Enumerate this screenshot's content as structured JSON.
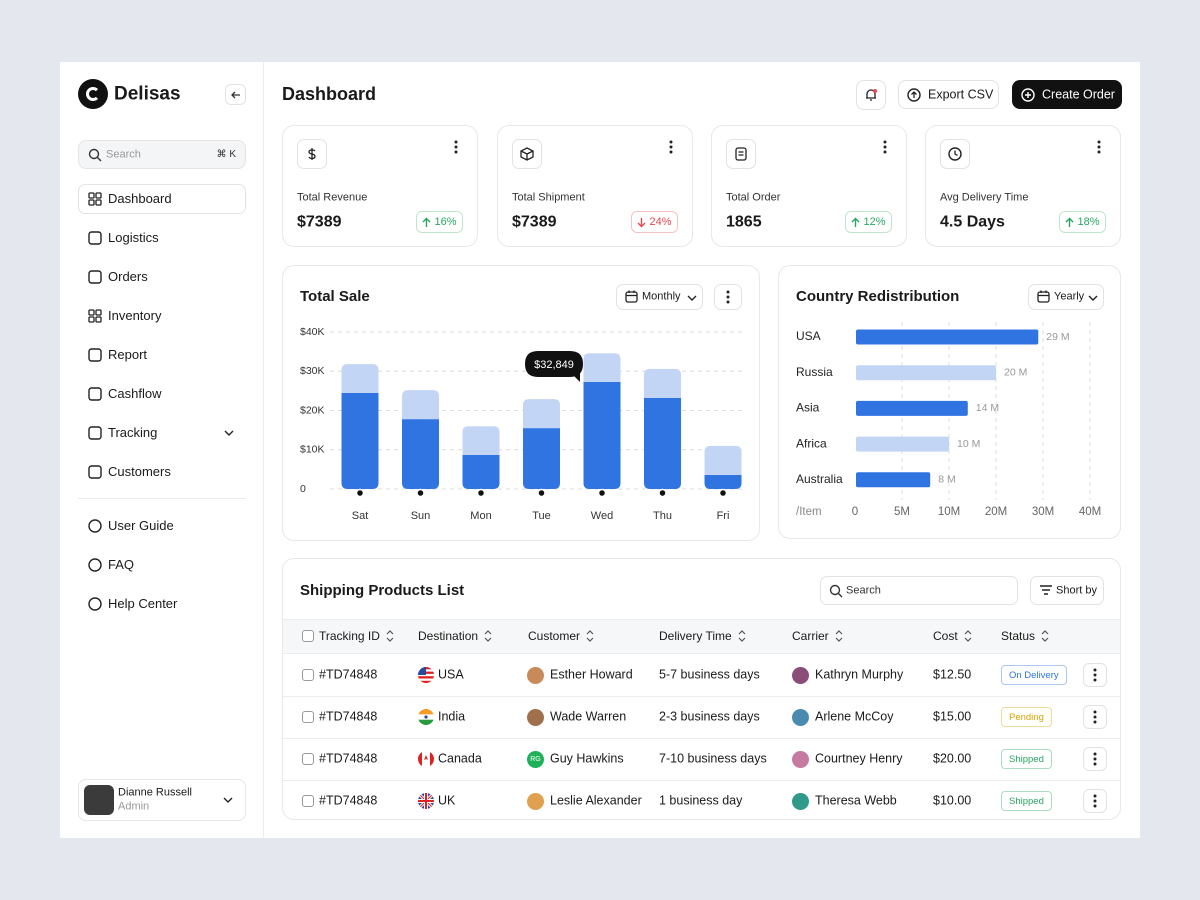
{
  "sidebar": {
    "brand": "Delisas",
    "search": "Search",
    "shortcut": "⌘ K",
    "nav": [
      "Dashboard",
      "Logistics",
      "Orders",
      "Inventory",
      "Report",
      "Cashflow",
      "Tracking",
      "Customers"
    ],
    "support": [
      "User Guide",
      "FAQ",
      "Help Center"
    ],
    "user": {
      "name": "Dianne Russell",
      "role": "Admin"
    }
  },
  "header": {
    "title": "Dashboard",
    "export": "Export CSV",
    "create": "Create Order"
  },
  "stats": [
    {
      "label": "Total Revenue",
      "value": "$7389",
      "change": "16%",
      "trend": "up"
    },
    {
      "label": "Total Shipment",
      "value": "$7389",
      "change": "24%",
      "trend": "down"
    },
    {
      "label": "Total Order",
      "value": "1865",
      "change": "12%",
      "trend": "up"
    },
    {
      "label": "Avg Delivery Time",
      "value": "4.5 Days",
      "change": "18%",
      "trend": "up"
    }
  ],
  "chart_data": [
    {
      "type": "bar",
      "title": "Total Sale",
      "period": "Monthly",
      "tooltip": "$32,849",
      "stacked": true,
      "categories": [
        "Sat",
        "Sun",
        "Mon",
        "Tue",
        "Wed",
        "Thu",
        "Fri"
      ],
      "series": [
        {
          "color": "#2f74e0",
          "values": [
            24500,
            17800,
            8700,
            15500,
            27300,
            23200,
            3600
          ]
        },
        {
          "color": "#c3d5f5",
          "values": [
            7300,
            7400,
            7300,
            7400,
            7300,
            7400,
            7400
          ]
        }
      ],
      "ylim": [
        0,
        40000
      ],
      "yticks": [
        0,
        {
          "value": 10000,
          "label": "$10K"
        },
        {
          "value": 20000,
          "label": "$20K"
        },
        {
          "value": 30000,
          "label": "$30K"
        },
        {
          "value": 40000,
          "label": "$40K"
        }
      ],
      "grid": true
    },
    {
      "type": "barh",
      "title": "Country Redistribution",
      "period": "Yearly",
      "x_label": "/Item",
      "categories": [
        "USA",
        "Russia",
        "Asia",
        "Africa",
        "Australia"
      ],
      "values": [
        29,
        20,
        14,
        10,
        8
      ],
      "value_labels": [
        "29 M",
        "20 M",
        "14 M",
        "10 M",
        "8 M"
      ],
      "colors": [
        "#2f74e0",
        "#c3d5f5",
        "#2f74e0",
        "#c3d5f5",
        "#2f74e0"
      ],
      "xlim": [
        0,
        40
      ],
      "xticks": [
        0,
        {
          "value": 5,
          "label": "5M"
        },
        {
          "value": 10,
          "label": "10M"
        },
        {
          "value": 20,
          "label": "20M"
        },
        {
          "value": 30,
          "label": "30M"
        },
        {
          "value": 40,
          "label": "40M"
        }
      ],
      "grid": true
    }
  ],
  "table": {
    "title": "Shipping Products List",
    "search": "Search",
    "sort": "Short by",
    "columns": [
      "Tracking ID",
      "Destination",
      "Customer",
      "Delivery Time",
      "Carrier",
      "Cost",
      "Status"
    ],
    "rows": [
      {
        "id": "#TD74848",
        "destination": "USA",
        "customer": "Esther Howard",
        "delivery": "5-7 business days",
        "carrier": "Kathryn Murphy",
        "cost": "$12.50",
        "status": "On Delivery",
        "status_color": "#2f74e0"
      },
      {
        "id": "#TD74848",
        "destination": "India",
        "customer": "Wade Warren",
        "delivery": "2-3 business days",
        "carrier": "Arlene McCoy",
        "cost": "$15.00",
        "status": "Pending",
        "status_color": "#d9a400"
      },
      {
        "id": "#TD74848",
        "destination": "Canada",
        "customer": "Guy Hawkins",
        "customer_initials": "RG",
        "delivery": "7-10 business days",
        "carrier": "Courtney Henry",
        "cost": "$20.00",
        "status": "Shipped",
        "status_color": "#27a861"
      },
      {
        "id": "#TD74848",
        "destination": "UK",
        "customer": "Leslie Alexander",
        "delivery": "1 business day",
        "carrier": "Theresa Webb",
        "cost": "$10.00",
        "status": "Shipped",
        "status_color": "#27a861"
      }
    ]
  }
}
